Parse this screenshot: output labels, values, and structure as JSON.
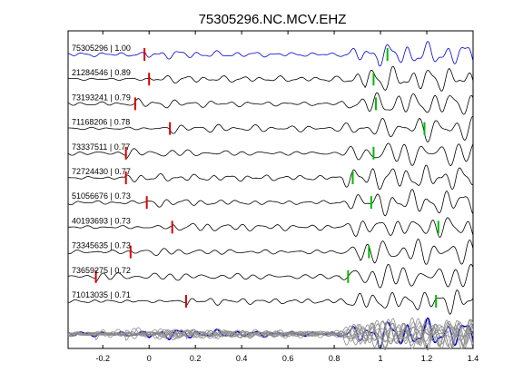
{
  "chart_data": {
    "type": "line",
    "title": "75305296.NC.MCV.EHZ",
    "xlabel": "",
    "ylabel": "",
    "xlim": [
      -0.35,
      1.4
    ],
    "xticks": [
      -0.2,
      0,
      0.2,
      0.4,
      0.6,
      0.8,
      1,
      1.2,
      1.4
    ],
    "xtick_labels": [
      "-0.2",
      "0",
      "0.2",
      "0.4",
      "0.6",
      "0.8",
      "1",
      "1.2",
      "1.4"
    ],
    "grid": false,
    "colors": {
      "reference": "#0000cc",
      "trace": "#000000",
      "stack": "#8c8c8c",
      "p_pick": "#dd0000",
      "s_pick": "#00bb00"
    },
    "traces": [
      {
        "label": "75305296 | 1.00",
        "p_pick": -0.02,
        "s_pick": 1.03,
        "reference": true
      },
      {
        "label": "21284546 | 0.89",
        "p_pick": 0.0,
        "s_pick": 0.97
      },
      {
        "label": "73193241 | 0.79",
        "p_pick": -0.06,
        "s_pick": 0.98
      },
      {
        "label": "71168206 | 0.78",
        "p_pick": 0.09,
        "s_pick": 1.19
      },
      {
        "label": "73337511 | 0.77",
        "p_pick": -0.1,
        "s_pick": 0.97
      },
      {
        "label": "72724430 | 0.77",
        "p_pick": -0.1,
        "s_pick": 0.88
      },
      {
        "label": "51056676 | 0.73",
        "p_pick": -0.01,
        "s_pick": 0.96
      },
      {
        "label": "40193693 | 0.73",
        "p_pick": 0.1,
        "s_pick": 1.25
      },
      {
        "label": "73345635 | 0.73",
        "p_pick": -0.08,
        "s_pick": 0.95
      },
      {
        "label": "73659275 | 0.72",
        "p_pick": -0.23,
        "s_pick": 0.86
      },
      {
        "label": "71013035 | 0.71",
        "p_pick": 0.16,
        "s_pick": 1.24
      }
    ]
  }
}
